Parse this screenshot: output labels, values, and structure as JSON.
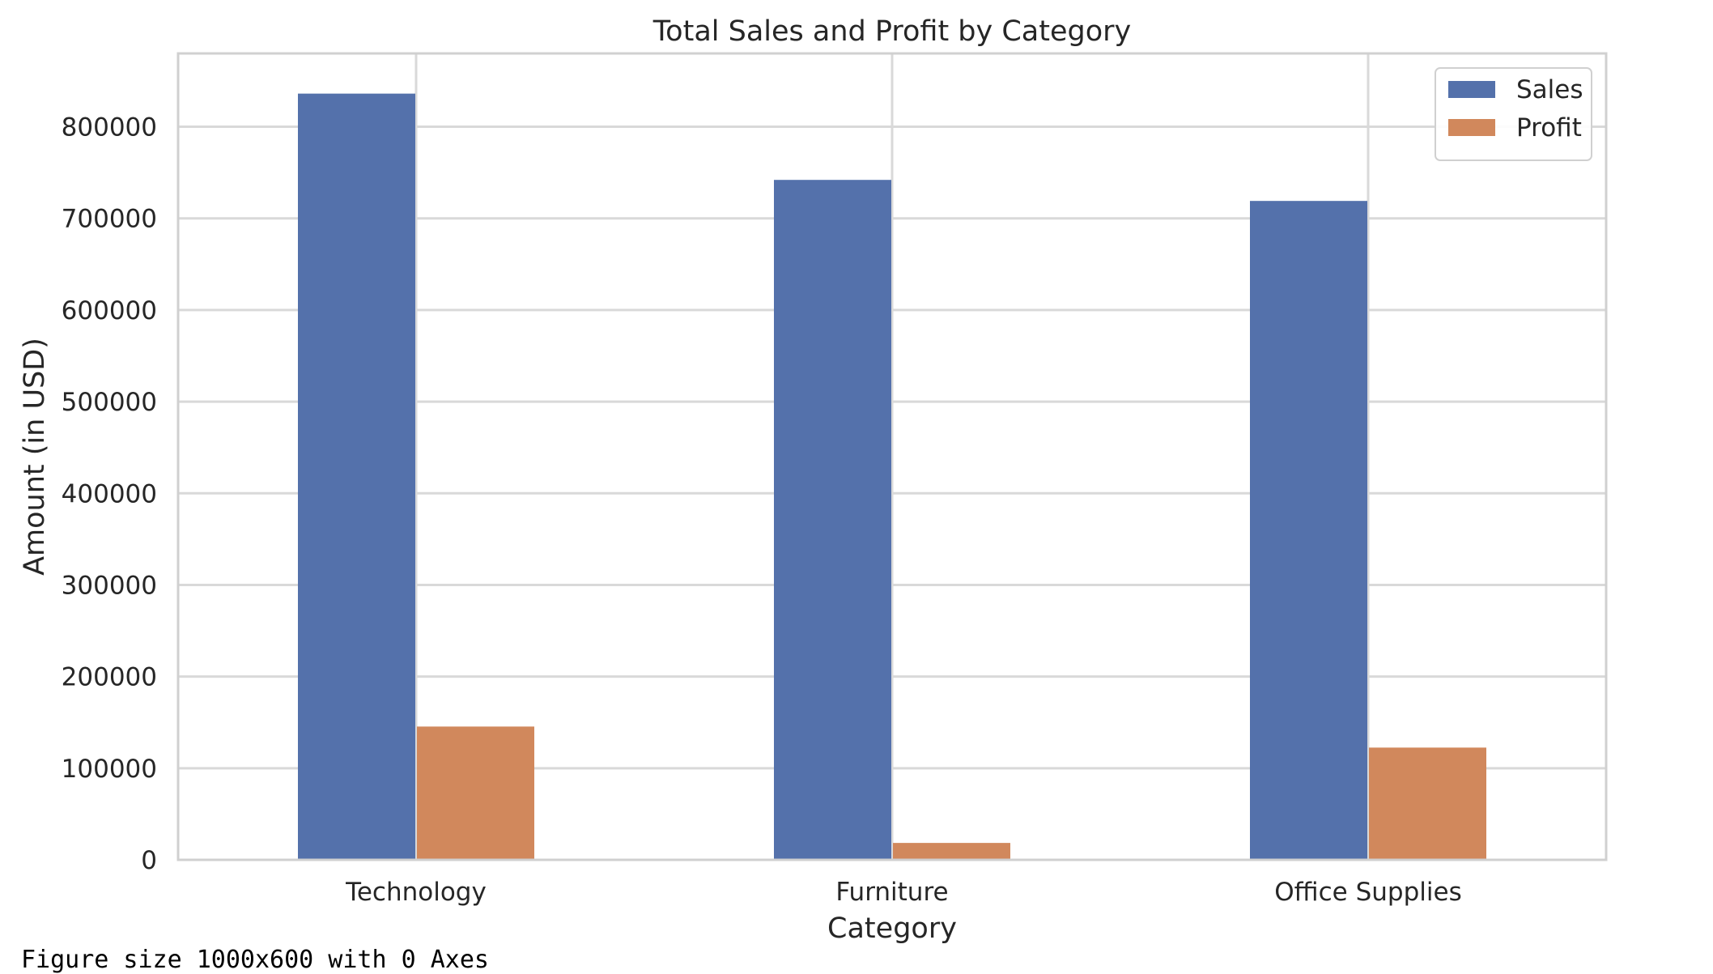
{
  "chart_data": {
    "type": "bar",
    "title": "Total Sales and Profit by Category",
    "xlabel": "Category",
    "ylabel": "Amount (in USD)",
    "categories": [
      "Technology",
      "Furniture",
      "Office Supplies"
    ],
    "series": [
      {
        "name": "Sales",
        "values": [
          836154,
          741999,
          719047
        ],
        "color": "#5471ab"
      },
      {
        "name": "Profit",
        "values": [
          145455,
          18451,
          122491
        ],
        "color": "#d1885c"
      }
    ],
    "ylim": [
      0,
      880000
    ],
    "yticks": [
      0,
      100000,
      200000,
      300000,
      400000,
      500000,
      600000,
      700000,
      800000
    ],
    "grid": true,
    "legend": "top-right"
  },
  "footer": {
    "text": "Figure size 1000x600 with 0 Axes"
  }
}
